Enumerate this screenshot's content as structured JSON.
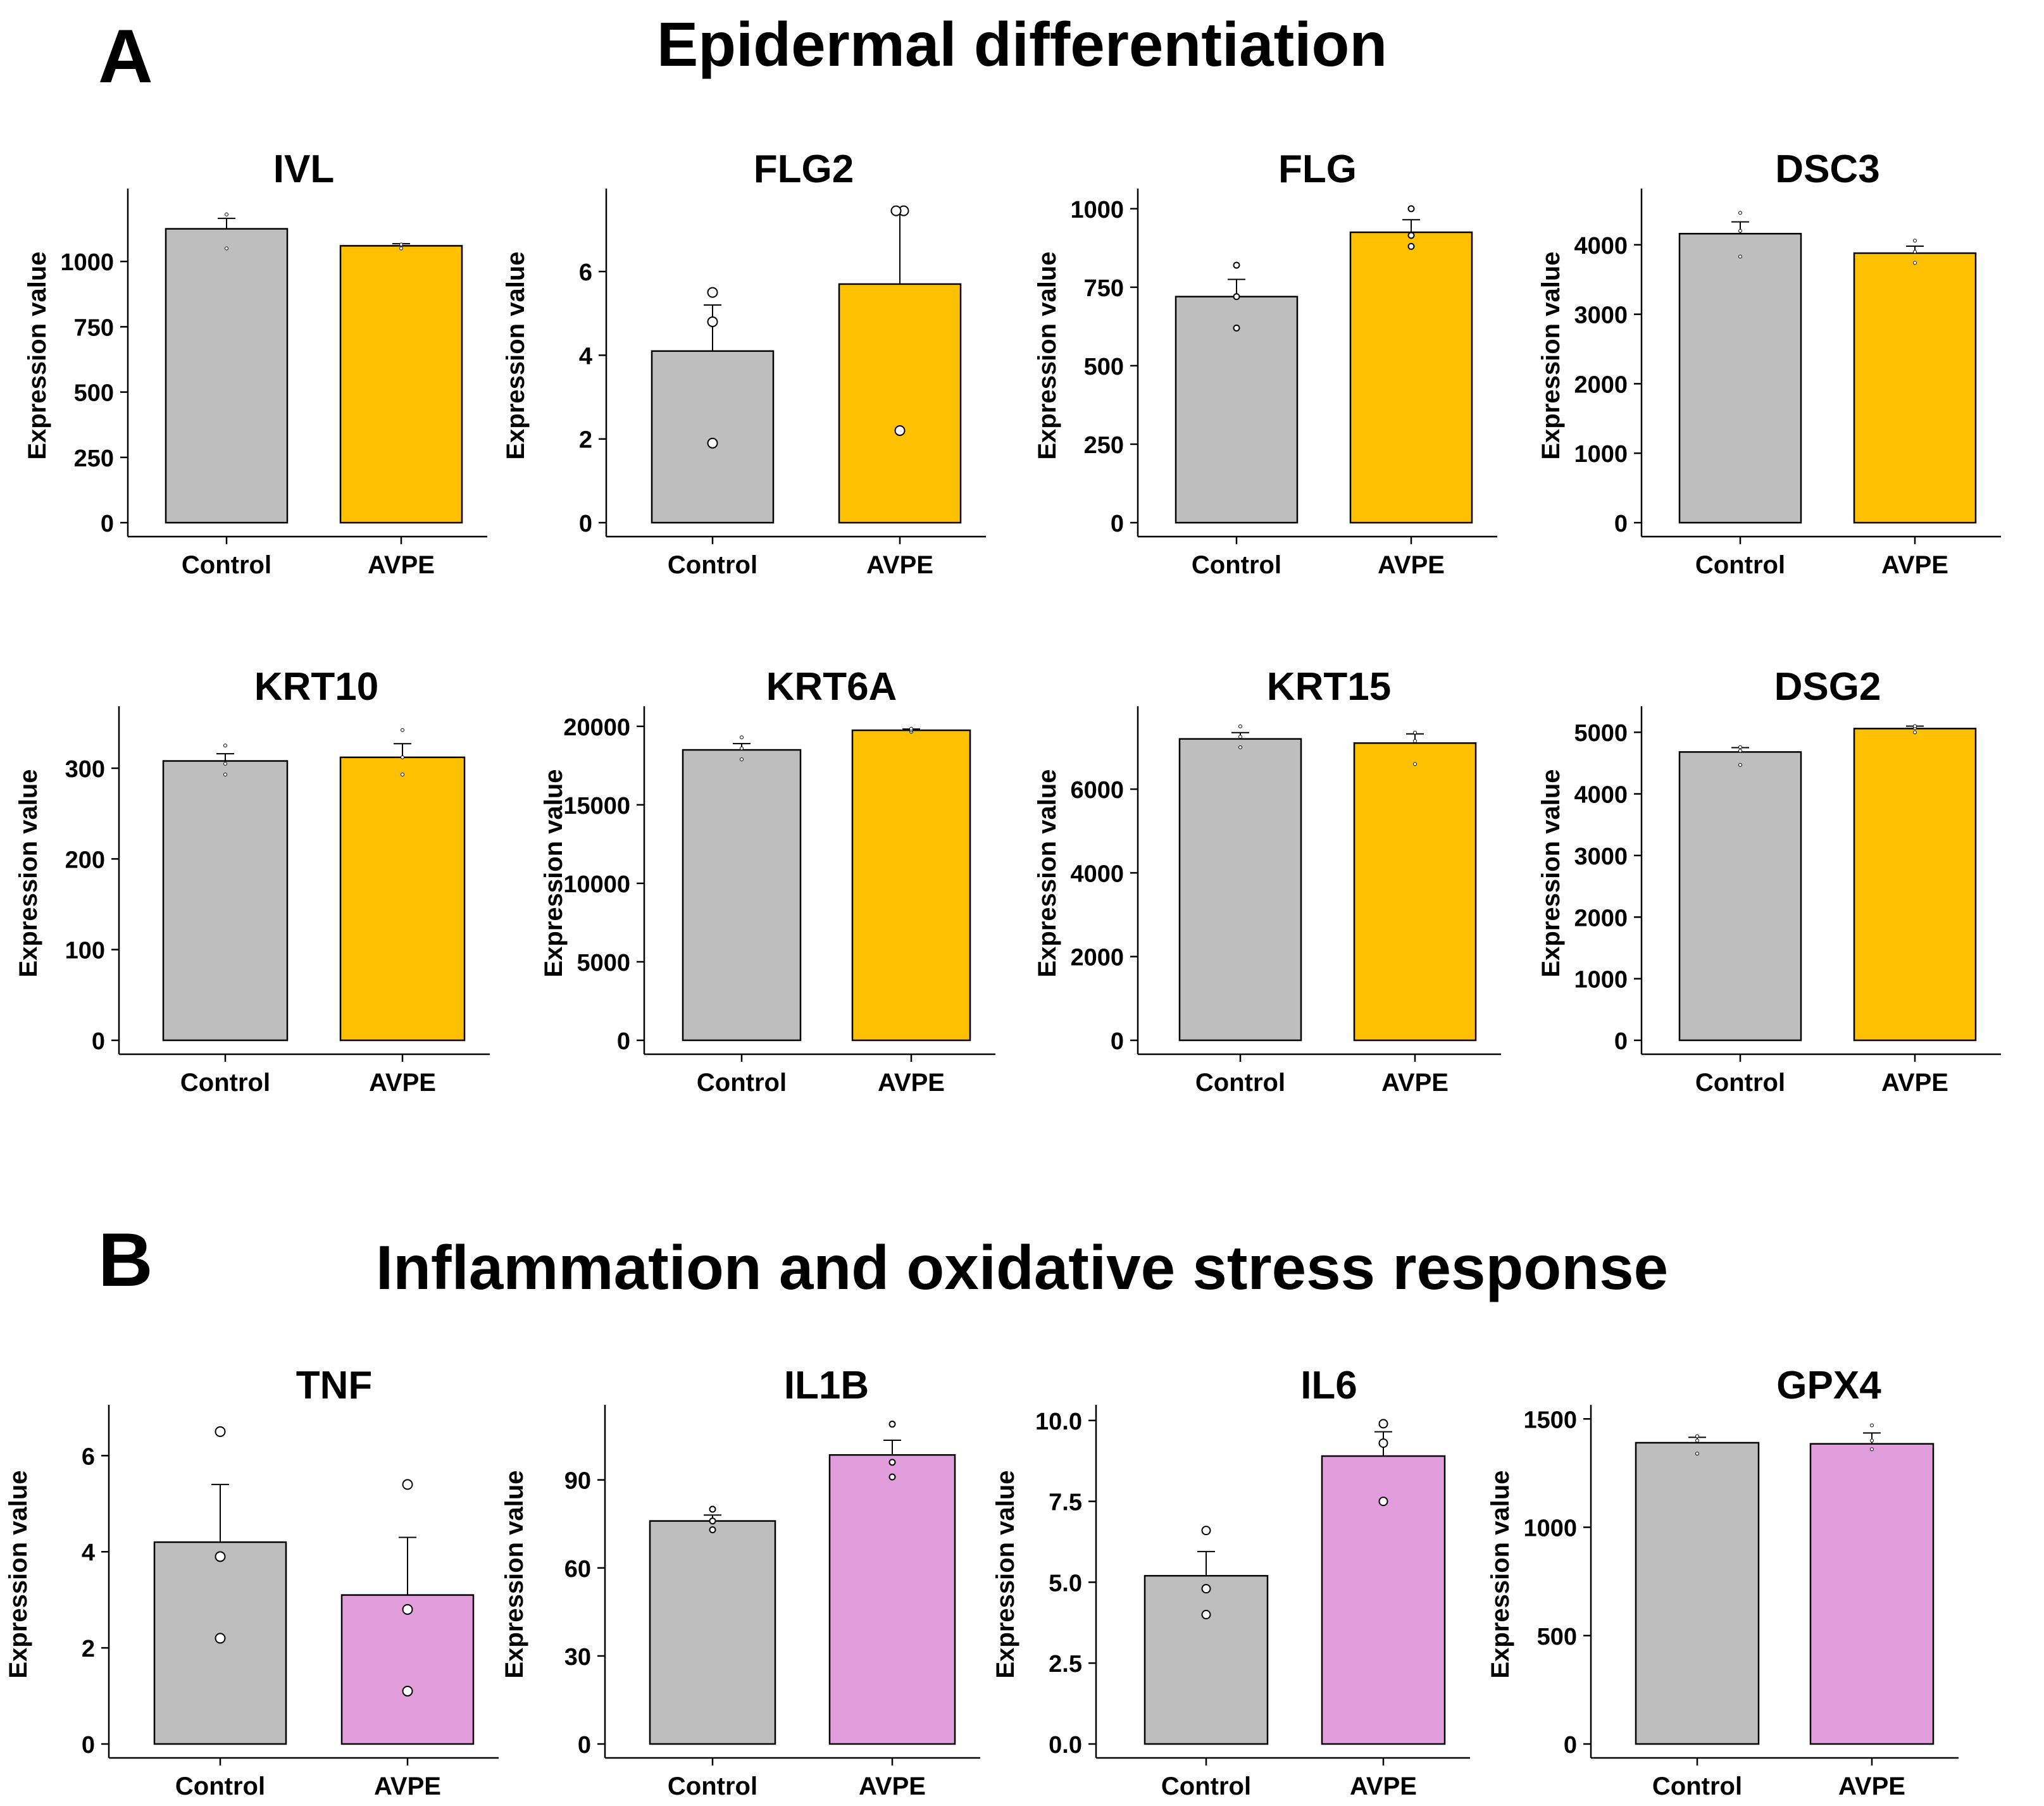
{
  "panels": {
    "A": {
      "letter": "A",
      "title": "Epidermal differentiation"
    },
    "B": {
      "letter": "B",
      "title": "Inflammation and oxidative stress response"
    }
  },
  "colors": {
    "control": "#bebebe",
    "avpe_a": "#ffc000",
    "avpe_b": "#e29ddc",
    "axis": "#000000"
  },
  "chart_data": [
    {
      "type": "bar",
      "title": "IVL",
      "ylabel": "Expression value",
      "categories": [
        "Control",
        "AVPE"
      ],
      "ylim": [
        0,
        1250
      ],
      "yticks": [
        0,
        250,
        500,
        750,
        1000
      ],
      "ytick_labels": [
        "0",
        "250",
        "500",
        "750",
        "1000"
      ],
      "values": [
        1125,
        1060
      ],
      "errors": [
        40,
        8
      ],
      "points": [
        [
          1050,
          1180
        ],
        [
          1050,
          1065
        ]
      ],
      "point_size": "tiny",
      "fill": "avpe_a"
    },
    {
      "type": "bar",
      "title": "FLG2",
      "ylabel": "Expression value",
      "categories": [
        "Control",
        "AVPE"
      ],
      "ylim": [
        0,
        7.8
      ],
      "yticks": [
        0,
        2,
        4,
        6
      ],
      "ytick_labels": [
        "0",
        "2",
        "4",
        "6"
      ],
      "values": [
        4.1,
        5.7
      ],
      "errors": [
        1.1,
        1.75
      ],
      "points": [
        [
          1.9,
          4.8,
          5.5
        ],
        [
          2.2,
          7.45,
          7.45
        ]
      ],
      "point_size": "large",
      "fill": "avpe_a"
    },
    {
      "type": "bar",
      "title": "FLG",
      "ylabel": "Expression value",
      "categories": [
        "Control",
        "AVPE"
      ],
      "ylim": [
        0,
        1040
      ],
      "yticks": [
        0,
        250,
        500,
        750,
        1000
      ],
      "ytick_labels": [
        "0",
        "250",
        "500",
        "750",
        "1000"
      ],
      "values": [
        720,
        925
      ],
      "errors": [
        55,
        40
      ],
      "points": [
        [
          620,
          720,
          820
        ],
        [
          880,
          915,
          1000
        ]
      ],
      "point_size": "small",
      "fill": "avpe_a"
    },
    {
      "type": "bar",
      "title": "DSC3",
      "ylabel": "Expression value",
      "categories": [
        "Control",
        "AVPE"
      ],
      "ylim": [
        0,
        4700
      ],
      "yticks": [
        0,
        1000,
        2000,
        3000,
        4000
      ],
      "ytick_labels": [
        "0",
        "1000",
        "2000",
        "3000",
        "4000"
      ],
      "values": [
        4160,
        3880
      ],
      "errors": [
        170,
        100
      ],
      "points": [
        [
          3830,
          4200,
          4460
        ],
        [
          3740,
          3900,
          4060
        ]
      ],
      "point_size": "tiny",
      "fill": "avpe_a"
    },
    {
      "type": "bar",
      "title": "KRT10",
      "ylabel": "Expression value",
      "categories": [
        "Control",
        "AVPE"
      ],
      "ylim": [
        0,
        360
      ],
      "yticks": [
        0,
        100,
        200,
        300
      ],
      "ytick_labels": [
        "0",
        "100",
        "200",
        "300"
      ],
      "values": [
        308,
        312
      ],
      "errors": [
        8,
        15
      ],
      "points": [
        [
          293,
          305,
          325
        ],
        [
          293,
          312,
          342
        ]
      ],
      "point_size": "tiny",
      "fill": "avpe_a"
    },
    {
      "type": "bar",
      "title": "KRT6A",
      "ylabel": "Expression value",
      "categories": [
        "Control",
        "AVPE"
      ],
      "ylim": [
        0,
        20800
      ],
      "yticks": [
        0,
        5000,
        10000,
        15000,
        20000
      ],
      "ytick_labels": [
        "0",
        "5000",
        "10000",
        "15000",
        "20000"
      ],
      "values": [
        18500,
        19750
      ],
      "errors": [
        400,
        80
      ],
      "points": [
        [
          17900,
          18600,
          19300
        ],
        [
          19650,
          19750,
          19850
        ]
      ],
      "point_size": "tiny",
      "fill": "avpe_a"
    },
    {
      "type": "bar",
      "title": "KRT15",
      "ylabel": "Expression value",
      "categories": [
        "Control",
        "AVPE"
      ],
      "ylim": [
        0,
        7800
      ],
      "yticks": [
        0,
        2000,
        4000,
        6000
      ],
      "ytick_labels": [
        "0",
        "2000",
        "4000",
        "6000"
      ],
      "values": [
        7200,
        7100
      ],
      "errors": [
        150,
        220
      ],
      "points": [
        [
          7000,
          7250,
          7500
        ],
        [
          6600,
          7150,
          7350
        ]
      ],
      "point_size": "tiny",
      "fill": "avpe_a"
    },
    {
      "type": "bar",
      "title": "DSG2",
      "ylabel": "Expression value",
      "categories": [
        "Control",
        "AVPE"
      ],
      "ylim": [
        0,
        5300
      ],
      "yticks": [
        0,
        1000,
        2000,
        3000,
        4000,
        5000
      ],
      "ytick_labels": [
        "0",
        "1000",
        "2000",
        "3000",
        "4000",
        "5000"
      ],
      "values": [
        4680,
        5060
      ],
      "errors": [
        70,
        40
      ],
      "points": [
        [
          4470,
          4700,
          4760
        ],
        [
          5000,
          5070,
          5100
        ]
      ],
      "point_size": "tiny",
      "fill": "avpe_a"
    },
    {
      "type": "bar",
      "title": "TNF",
      "ylabel": "Expression value",
      "categories": [
        "Control",
        "AVPE"
      ],
      "ylim": [
        0,
        6.9
      ],
      "yticks": [
        0,
        2,
        4,
        6
      ],
      "ytick_labels": [
        "0",
        "2",
        "4",
        "6"
      ],
      "values": [
        4.2,
        3.1
      ],
      "errors": [
        1.2,
        1.2
      ],
      "points": [
        [
          2.2,
          3.9,
          6.5
        ],
        [
          1.1,
          2.8,
          5.4
        ]
      ],
      "point_size": "large",
      "fill": "avpe_b"
    },
    {
      "type": "bar",
      "title": "IL1B",
      "ylabel": "Expression value",
      "categories": [
        "Control",
        "AVPE"
      ],
      "ylim": [
        0,
        113
      ],
      "yticks": [
        0,
        30,
        60,
        90
      ],
      "ytick_labels": [
        "0",
        "30",
        "60",
        "90"
      ],
      "values": [
        76,
        98.5
      ],
      "errors": [
        2,
        5
      ],
      "points": [
        [
          73,
          76,
          80
        ],
        [
          91,
          96,
          109
        ]
      ],
      "point_size": "small",
      "fill": "avpe_b"
    },
    {
      "type": "bar",
      "title": "IL6",
      "ylabel": "Expression value",
      "categories": [
        "Control",
        "AVPE"
      ],
      "ylim": [
        0,
        10.25
      ],
      "yticks": [
        0,
        2.5,
        5,
        7.5,
        10
      ],
      "ytick_labels": [
        "0.0",
        "2.5",
        "5.0",
        "7.5",
        "10.0"
      ],
      "values": [
        5.2,
        8.9
      ],
      "errors": [
        0.75,
        0.75
      ],
      "points": [
        [
          4.0,
          4.8,
          6.6
        ],
        [
          7.5,
          9.3,
          9.9
        ]
      ],
      "point_size": "medium",
      "fill": "avpe_b"
    },
    {
      "type": "bar",
      "title": "GPX4",
      "ylabel": "Expression value",
      "categories": [
        "Control",
        "AVPE"
      ],
      "ylim": [
        0,
        1530
      ],
      "yticks": [
        0,
        500,
        1000,
        1500
      ],
      "ytick_labels": [
        "0",
        "500",
        "1000",
        "1500"
      ],
      "values": [
        1390,
        1385
      ],
      "errors": [
        25,
        50
      ],
      "points": [
        [
          1340,
          1400,
          1420
        ],
        [
          1360,
          1400,
          1470
        ]
      ],
      "point_size": "tiny",
      "fill": "avpe_b"
    }
  ]
}
